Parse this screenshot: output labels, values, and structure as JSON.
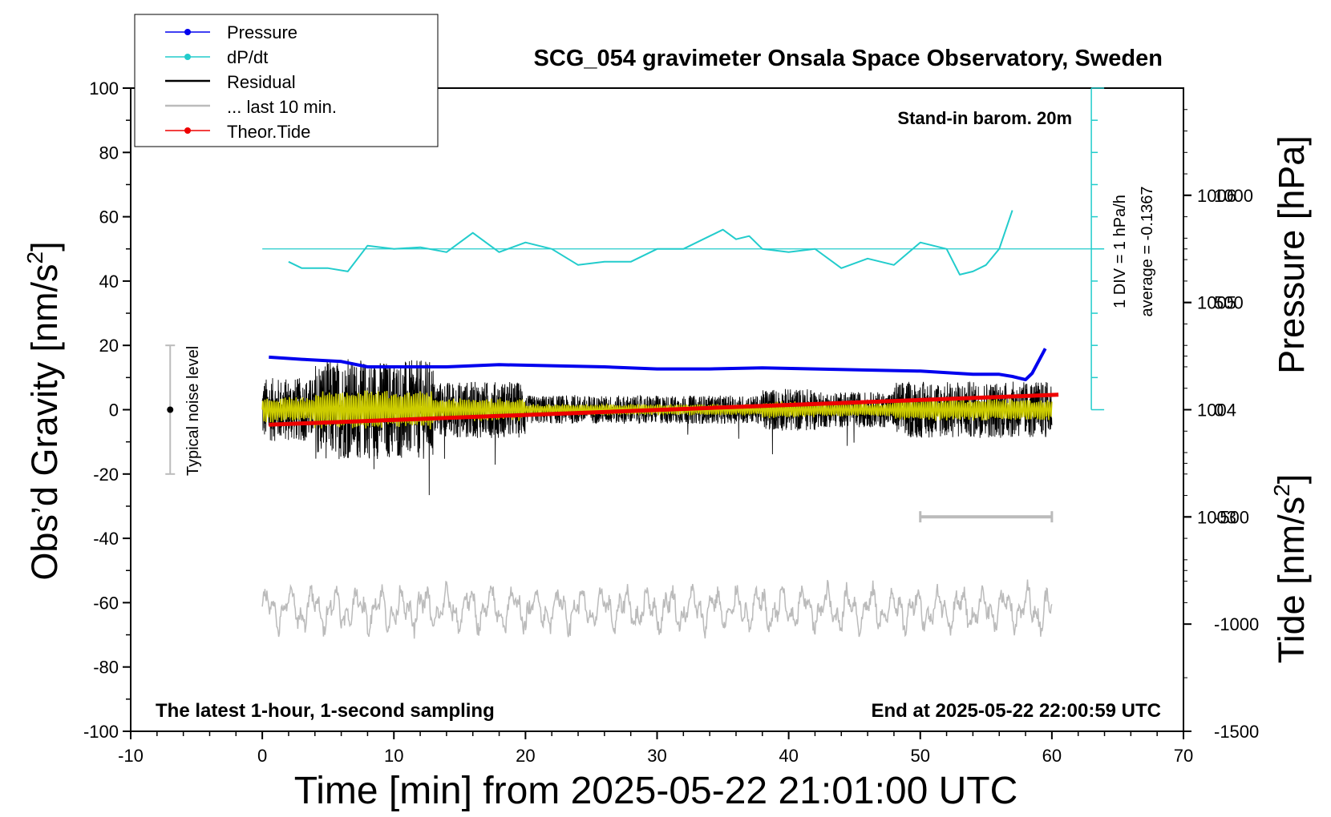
{
  "chart_data": {
    "type": "line",
    "title": "SCG_054 gravimeter Onsala Space Observatory, Sweden",
    "xlabel": "Time [min] from 2025-05-22 21:01:00 UTC",
    "ylabel_left_prefix": "Obs’d Gravity [nm/s",
    "ylabel_left_sup": "2",
    "ylabel_left_suffix": "]",
    "ylabel_pressure": "Pressure [hPa]",
    "ylabel_tide_prefix": "Tide [nm/s",
    "ylabel_tide_sup": "2",
    "ylabel_tide_suffix": "]",
    "xlim": [
      -10,
      70
    ],
    "ylim": [
      -100,
      100
    ],
    "pressure_lim": [
      1001.0,
      1007.0
    ],
    "tide_lim": [
      -1500,
      1500
    ],
    "x_ticks": [
      "-10",
      "0",
      "10",
      "20",
      "30",
      "40",
      "50",
      "60",
      "70"
    ],
    "y_ticks": [
      "100",
      "80",
      "60",
      "40",
      "20",
      "0",
      "-20",
      "-40",
      "-60",
      "-80",
      "-100"
    ],
    "pressure_ticks": [
      "1006",
      "1005",
      "1004",
      "1003"
    ],
    "tide_ticks": [
      "1000",
      "500",
      "0",
      "-500",
      "-1000",
      "-1500"
    ],
    "annotations": {
      "barometer": "Stand-in barom. 20m",
      "dpdt_scale": "1 DIV = 1 hPa/h",
      "dpdt_average": "average = -0.1367",
      "noise": "Typical noise level",
      "bottom_left": "The latest 1-hour, 1-second sampling",
      "bottom_right": "End at 2025-05-22 22:00:59 UTC"
    },
    "legend_position": "top-left",
    "legend": [
      {
        "name": "Pressure",
        "color": "#0000ee",
        "marker": true
      },
      {
        "name": "dP/dt",
        "color": "#22cccc",
        "marker": true
      },
      {
        "name": "Residual",
        "color": "#000000",
        "marker": false
      },
      {
        "name": "... last 10 min.",
        "color": "#bbbbbb",
        "marker": false
      },
      {
        "name": "Theor.Tide",
        "color": "#ee0000",
        "marker": true
      }
    ],
    "colors": {
      "pressure": "#0000ee",
      "dpdt": "#22cccc",
      "residual": "#000000",
      "residual_smooth": "#cccc00",
      "last10": "#bbbbbb",
      "tide": "#ee0000",
      "noise_bar": "#bbbbbb"
    },
    "series": [
      {
        "name": "Pressure",
        "axis": "pressure",
        "x": [
          0.5,
          3,
          6,
          8,
          10,
          14,
          18,
          22,
          26,
          30,
          34,
          38,
          42,
          46,
          50,
          54,
          56,
          57,
          58,
          58.5,
          59.5
        ],
        "values": [
          1004.49,
          1004.47,
          1004.45,
          1004.4,
          1004.4,
          1004.4,
          1004.42,
          1004.41,
          1004.4,
          1004.38,
          1004.38,
          1004.39,
          1004.38,
          1004.37,
          1004.36,
          1004.33,
          1004.33,
          1004.31,
          1004.28,
          1004.34,
          1004.57
        ]
      },
      {
        "name": "dP/dt",
        "axis": "dpdt",
        "x": [
          2,
          3,
          5,
          6.5,
          8,
          10,
          12,
          14,
          16,
          18,
          20,
          22,
          24,
          26,
          28,
          30,
          32,
          34,
          35,
          36,
          37,
          38,
          40,
          42,
          44,
          46,
          48,
          50,
          52,
          53,
          54,
          55,
          56,
          57
        ],
        "values": [
          -0.4,
          -0.6,
          -0.6,
          -0.7,
          0.1,
          0.0,
          0.05,
          -0.1,
          0.5,
          -0.1,
          0.2,
          0.0,
          -0.5,
          -0.4,
          -0.4,
          0.0,
          0.0,
          0.4,
          0.6,
          0.3,
          0.4,
          0.0,
          -0.1,
          0.0,
          -0.6,
          -0.3,
          -0.5,
          0.2,
          0.0,
          -0.8,
          -0.7,
          -0.5,
          0.0,
          1.2
        ]
      },
      {
        "name": "Theor.Tide",
        "axis": "tide",
        "x": [
          0.5,
          60.5
        ],
        "values": [
          -70,
          70
        ]
      }
    ]
  }
}
